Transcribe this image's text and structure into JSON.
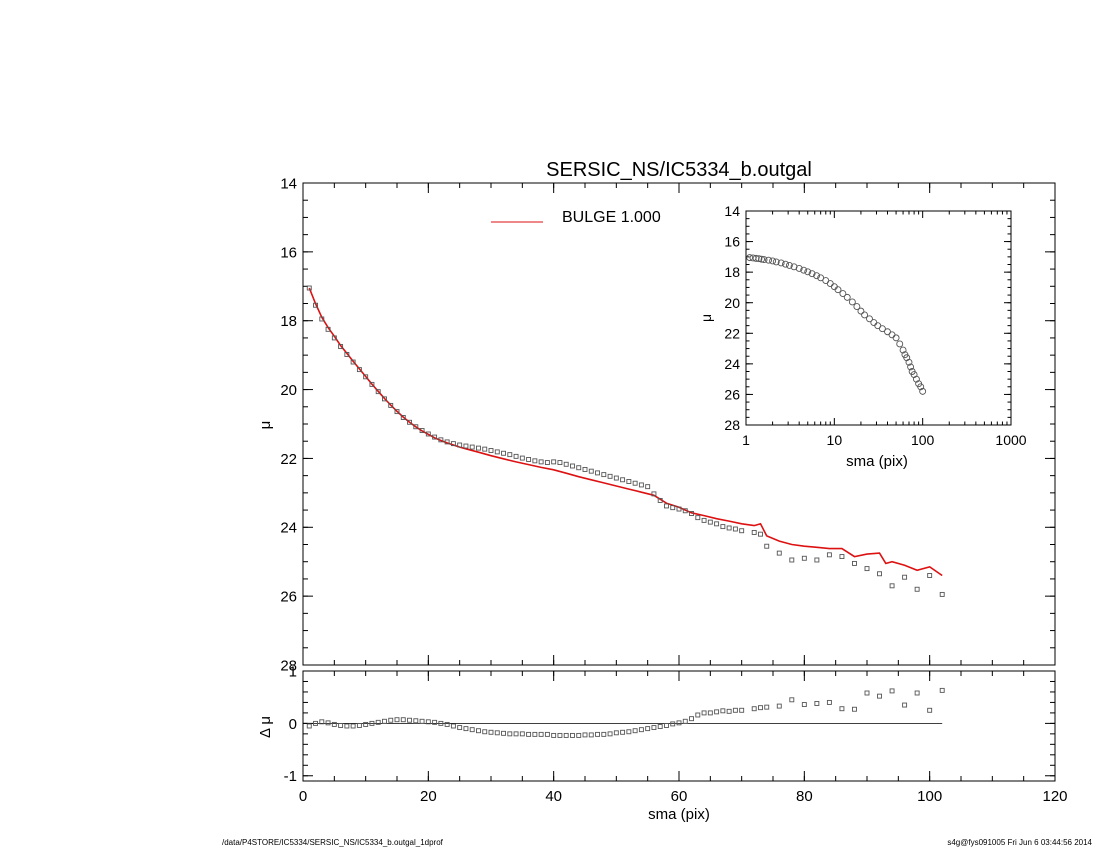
{
  "footer": {
    "path": "/data/P4STORE/IC5334/SERSIC_NS/IC5334_b.outgal_1dprof",
    "stamp": "s4g@fys091005  Fri Jun  6 03:44:56 2014"
  },
  "colors": {
    "model_line": "#dd1111",
    "data_points": "#555555",
    "axes": "#000000"
  },
  "chart_data": [
    {
      "id": "main",
      "type": "scatter",
      "title": "SERSIC_NS/IC5334_b.outgal",
      "xlabel": "",
      "ylabel": "μ",
      "xlim": [
        0,
        120
      ],
      "ylim": [
        28,
        14
      ],
      "yreversed": true,
      "xticks": [
        0,
        20,
        40,
        60,
        80,
        100,
        120
      ],
      "yticks": [
        14,
        16,
        18,
        20,
        22,
        24,
        26,
        28
      ],
      "legend": {
        "placement": "top-center",
        "entries": [
          {
            "label": "BULGE  1.000",
            "color": "#dd1111"
          }
        ]
      },
      "series": [
        {
          "name": "BULGE  1.000",
          "kind": "line",
          "color": "#dd1111",
          "x": [
            1,
            2,
            3,
            4,
            5,
            6,
            7,
            8,
            9,
            10,
            11,
            12,
            13,
            14,
            15,
            16,
            17,
            18,
            19,
            20,
            21,
            22,
            23,
            24,
            25,
            26,
            28,
            30,
            32,
            34,
            36,
            38,
            40,
            42,
            44,
            46,
            48,
            50,
            52,
            54,
            56,
            58,
            60,
            62,
            64,
            66,
            68,
            70,
            72,
            73,
            74,
            76,
            78,
            80,
            82,
            84,
            86,
            88,
            90,
            92,
            93,
            94,
            96,
            98,
            100,
            102
          ],
          "y": [
            17.05,
            17.5,
            17.9,
            18.2,
            18.45,
            18.72,
            18.95,
            19.18,
            19.4,
            19.62,
            19.84,
            20.05,
            20.26,
            20.45,
            20.63,
            20.8,
            20.95,
            21.08,
            21.2,
            21.3,
            21.4,
            21.48,
            21.55,
            21.61,
            21.67,
            21.72,
            21.82,
            21.92,
            22.01,
            22.1,
            22.18,
            22.26,
            22.33,
            22.43,
            22.53,
            22.62,
            22.71,
            22.8,
            22.89,
            22.98,
            23.07,
            23.3,
            23.42,
            23.58,
            23.66,
            23.75,
            23.82,
            23.9,
            23.95,
            23.9,
            24.25,
            24.4,
            24.5,
            24.55,
            24.58,
            24.62,
            24.62,
            24.85,
            24.78,
            24.75,
            25.05,
            25.0,
            25.1,
            25.25,
            25.15,
            25.4
          ]
        },
        {
          "name": "",
          "kind": "points",
          "color": "#555555",
          "x": [
            1,
            2,
            3,
            4,
            5,
            6,
            7,
            8,
            9,
            10,
            11,
            12,
            13,
            14,
            15,
            16,
            17,
            18,
            19,
            20,
            21,
            22,
            23,
            24,
            25,
            26,
            27,
            28,
            29,
            30,
            31,
            32,
            33,
            34,
            35,
            36,
            37,
            38,
            39,
            40,
            41,
            42,
            43,
            44,
            45,
            46,
            47,
            48,
            49,
            50,
            51,
            52,
            53,
            54,
            55,
            56,
            57,
            58,
            59,
            60,
            61,
            62,
            63,
            64,
            65,
            66,
            67,
            68,
            69,
            70,
            72,
            73,
            74,
            76,
            78,
            80,
            82,
            84,
            86,
            88,
            90,
            92,
            94,
            96,
            98,
            100,
            102
          ],
          "y": [
            17.05,
            17.55,
            17.95,
            18.25,
            18.5,
            18.75,
            18.98,
            19.2,
            19.42,
            19.63,
            19.85,
            20.06,
            20.27,
            20.46,
            20.64,
            20.81,
            20.95,
            21.08,
            21.19,
            21.29,
            21.38,
            21.46,
            21.52,
            21.57,
            21.61,
            21.64,
            21.67,
            21.7,
            21.73,
            21.77,
            21.81,
            21.85,
            21.89,
            21.94,
            21.99,
            22.03,
            22.07,
            22.1,
            22.12,
            22.1,
            22.12,
            22.17,
            22.22,
            22.27,
            22.32,
            22.37,
            22.42,
            22.47,
            22.52,
            22.57,
            22.62,
            22.67,
            22.72,
            22.77,
            22.82,
            23.03,
            23.22,
            23.38,
            23.43,
            23.47,
            23.52,
            23.6,
            23.72,
            23.8,
            23.85,
            23.9,
            23.98,
            24.02,
            24.05,
            24.1,
            24.15,
            24.2,
            24.55,
            24.75,
            24.95,
            24.9,
            24.95,
            24.8,
            24.85,
            25.05,
            25.2,
            25.35,
            25.7,
            25.45,
            25.8,
            25.4,
            25.95
          ]
        }
      ]
    },
    {
      "id": "residual",
      "type": "scatter",
      "title": "",
      "xlabel": "sma (pix)",
      "ylabel": "Δ μ",
      "xlim": [
        0,
        120
      ],
      "ylim": [
        -1.1,
        1.0
      ],
      "xticks": [
        0,
        20,
        40,
        60,
        80,
        100,
        120
      ],
      "yticks": [
        -1,
        0,
        1
      ],
      "zero_line": {
        "x": [
          0,
          102
        ],
        "y": 0
      },
      "series": [
        {
          "name": "",
          "kind": "points",
          "color": "#555555",
          "x": [
            1,
            2,
            3,
            4,
            5,
            6,
            7,
            8,
            9,
            10,
            11,
            12,
            13,
            14,
            15,
            16,
            17,
            18,
            19,
            20,
            21,
            22,
            23,
            24,
            25,
            26,
            27,
            28,
            29,
            30,
            31,
            32,
            33,
            34,
            35,
            36,
            37,
            38,
            39,
            40,
            41,
            42,
            43,
            44,
            45,
            46,
            47,
            48,
            49,
            50,
            51,
            52,
            53,
            54,
            55,
            56,
            57,
            58,
            59,
            60,
            61,
            62,
            63,
            64,
            65,
            66,
            67,
            68,
            69,
            70,
            72,
            73,
            74,
            76,
            78,
            80,
            82,
            84,
            86,
            88,
            90,
            92,
            94,
            96,
            98,
            100,
            102
          ],
          "y": [
            -0.05,
            0.0,
            0.03,
            0.01,
            -0.02,
            -0.04,
            -0.05,
            -0.05,
            -0.04,
            -0.02,
            0.0,
            0.02,
            0.04,
            0.06,
            0.07,
            0.07,
            0.06,
            0.05,
            0.04,
            0.03,
            0.02,
            0.0,
            -0.02,
            -0.05,
            -0.08,
            -0.1,
            -0.12,
            -0.14,
            -0.16,
            -0.17,
            -0.18,
            -0.19,
            -0.2,
            -0.2,
            -0.2,
            -0.21,
            -0.21,
            -0.21,
            -0.21,
            -0.23,
            -0.23,
            -0.23,
            -0.23,
            -0.23,
            -0.22,
            -0.22,
            -0.21,
            -0.21,
            -0.2,
            -0.18,
            -0.17,
            -0.16,
            -0.14,
            -0.12,
            -0.1,
            -0.08,
            -0.06,
            -0.04,
            -0.01,
            0.01,
            0.04,
            0.09,
            0.16,
            0.2,
            0.2,
            0.22,
            0.24,
            0.23,
            0.25,
            0.25,
            0.28,
            0.3,
            0.31,
            0.33,
            0.45,
            0.36,
            0.38,
            0.4,
            0.28,
            0.27,
            0.58,
            0.52,
            0.62,
            0.35,
            0.58,
            0.25,
            0.63
          ]
        }
      ]
    },
    {
      "id": "inset",
      "type": "scatter",
      "title": "",
      "xlabel": "sma (pix)",
      "ylabel": "μ",
      "xscale": "log",
      "xlim": [
        1,
        1000
      ],
      "ylim": [
        28,
        14
      ],
      "yreversed": true,
      "xticks": [
        1,
        10,
        100,
        1000
      ],
      "xtick_labels": [
        "1",
        "10",
        "100",
        "1000"
      ],
      "yticks": [
        14,
        16,
        18,
        20,
        22,
        24,
        26,
        28
      ],
      "series": [
        {
          "name": "",
          "kind": "points",
          "color": "#555555",
          "x": [
            1.1,
            1.2,
            1.3,
            1.4,
            1.5,
            1.6,
            1.8,
            2.0,
            2.2,
            2.5,
            2.8,
            3.1,
            3.5,
            4,
            4.5,
            5,
            5.6,
            6.3,
            7,
            8,
            9,
            10,
            11,
            12.5,
            14,
            16,
            18,
            20,
            22,
            25,
            28,
            31,
            35,
            40,
            45,
            50,
            55,
            60,
            63,
            66,
            70,
            73,
            76,
            80,
            85,
            90,
            95,
            100
          ],
          "y": [
            17.05,
            17.07,
            17.1,
            17.12,
            17.15,
            17.18,
            17.22,
            17.27,
            17.33,
            17.4,
            17.48,
            17.56,
            17.65,
            17.76,
            17.87,
            17.98,
            18.1,
            18.23,
            18.37,
            18.55,
            18.75,
            18.95,
            19.15,
            19.4,
            19.65,
            19.95,
            20.25,
            20.55,
            20.8,
            21.05,
            21.3,
            21.5,
            21.7,
            21.9,
            22.1,
            22.3,
            22.7,
            23.1,
            23.4,
            23.6,
            23.9,
            24.2,
            24.5,
            24.7,
            25.0,
            25.3,
            25.5,
            25.8
          ]
        }
      ]
    }
  ]
}
